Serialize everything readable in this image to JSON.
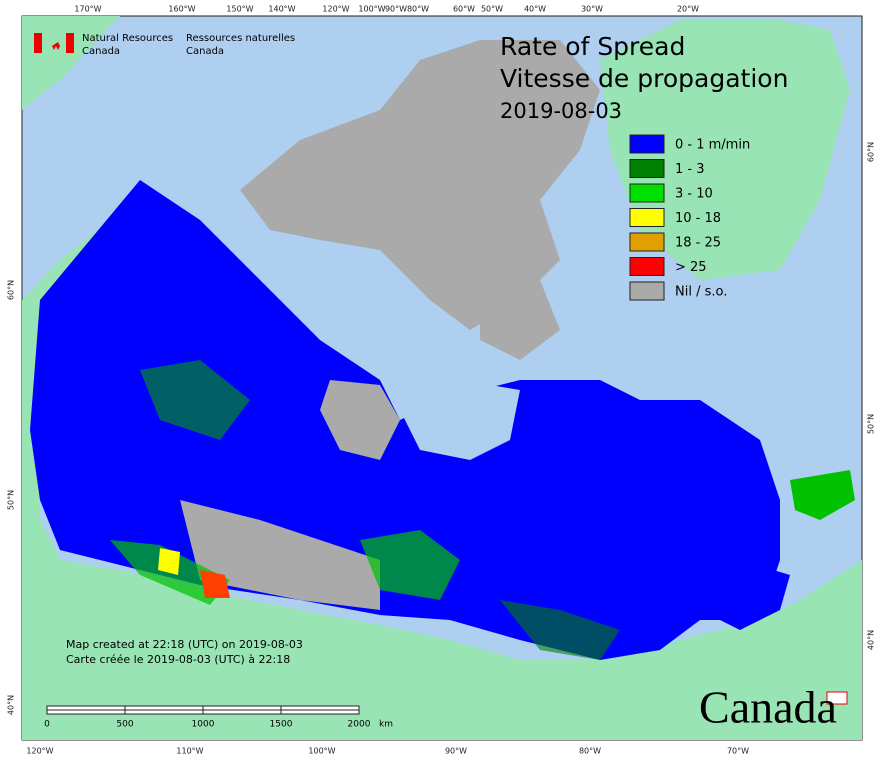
{
  "header": {
    "agency_en": "Natural Resources",
    "agency_en_2": "Canada",
    "agency_fr": "Ressources naturelles",
    "agency_fr_2": "Canada"
  },
  "title": {
    "line1": "Rate of Spread",
    "line2": "Vitesse de propagation",
    "date": "2019-08-03"
  },
  "legend": [
    {
      "label": "0 - 1 m/min",
      "color": "#0000ff"
    },
    {
      "label": "1 - 3",
      "color": "#008000"
    },
    {
      "label": "3 - 10",
      "color": "#00e000"
    },
    {
      "label": "10 - 18",
      "color": "#ffff00"
    },
    {
      "label": "18 - 25",
      "color": "#e0a000"
    },
    {
      "label": "> 25",
      "color": "#ff0000"
    },
    {
      "label": "Nil / s.o.",
      "color": "#aaaaaa"
    }
  ],
  "graticule": {
    "top": [
      "170°W",
      "160°W",
      "150°W",
      "140°W",
      "120°W",
      "100°W",
      "90°W",
      "80°W",
      "60°W",
      "50°W",
      "40°W",
      "30°W",
      "20°W"
    ],
    "bottom": [
      "120°W",
      "110°W",
      "100°W",
      "90°W",
      "80°W",
      "70°W"
    ],
    "left": [
      "60°N",
      "50°N",
      "40°N"
    ],
    "right": [
      "60°N",
      "50°N",
      "40°N"
    ]
  },
  "scale_bar": {
    "labels": [
      0,
      500,
      1000,
      1500,
      2000
    ],
    "unit": "km"
  },
  "footer": {
    "created_en": "Map created at 22:18 (UTC) on 2019-08-03",
    "created_fr": "Carte créée le 2019-08-03 (UTC) à 22:18"
  },
  "wordmark": "Canada"
}
